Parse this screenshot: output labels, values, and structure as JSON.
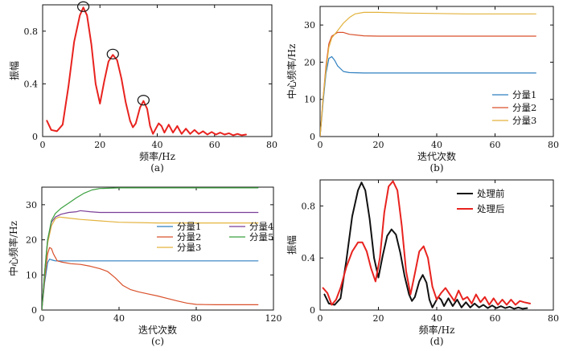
{
  "chart_data": [
    {
      "id": "a",
      "type": "line",
      "caption": "(a)",
      "xlabel": "频率/Hz",
      "ylabel": "振幅",
      "xlim": [
        0,
        80
      ],
      "ylim": [
        0,
        1.0
      ],
      "xticks": [
        0,
        20,
        40,
        60,
        80
      ],
      "yticks": [
        0,
        0.4,
        0.8
      ],
      "ytick_labels": [
        "0",
        "0.4",
        "0.8"
      ],
      "series": [
        {
          "name": "spectrum",
          "color": "#e8231f",
          "x": [
            1.5,
            3,
            5,
            7,
            9,
            11,
            13,
            14.2,
            15.5,
            17,
            18.5,
            20,
            21.5,
            23,
            24.5,
            26,
            27.5,
            29,
            30.5,
            31.5,
            32.5,
            34,
            35.2,
            36.5,
            37.5,
            38.5,
            39.5,
            40.5,
            41.5,
            42.5,
            44,
            45.5,
            47,
            48.5,
            50,
            51.5,
            53,
            54.5,
            56,
            57.5,
            59,
            60.5,
            62,
            63.5,
            65,
            66.5,
            68,
            69.5,
            71
          ],
          "y": [
            0.12,
            0.05,
            0.04,
            0.09,
            0.38,
            0.72,
            0.92,
            0.98,
            0.92,
            0.7,
            0.4,
            0.25,
            0.42,
            0.57,
            0.62,
            0.58,
            0.44,
            0.26,
            0.12,
            0.07,
            0.1,
            0.22,
            0.27,
            0.21,
            0.08,
            0.02,
            0.06,
            0.1,
            0.08,
            0.03,
            0.09,
            0.03,
            0.08,
            0.02,
            0.06,
            0.02,
            0.05,
            0.02,
            0.04,
            0.015,
            0.035,
            0.015,
            0.03,
            0.015,
            0.025,
            0.01,
            0.02,
            0.01,
            0.015
          ]
        }
      ],
      "markers": [
        {
          "x": 14.2,
          "y": 0.98
        },
        {
          "x": 24.5,
          "y": 0.62
        },
        {
          "x": 35.2,
          "y": 0.27
        }
      ]
    },
    {
      "id": "b",
      "type": "line",
      "caption": "(b)",
      "xlabel": "迭代次数",
      "ylabel": "中心频率/Hz",
      "xlim": [
        0,
        80
      ],
      "ylim": [
        0,
        35
      ],
      "xticks": [
        0,
        20,
        40,
        60,
        80
      ],
      "yticks": [
        0,
        10,
        20,
        30
      ],
      "legend_position": "bottom-right",
      "series": [
        {
          "name": "分量1",
          "color": "#2e7fc0",
          "x": [
            0,
            1,
            2,
            3,
            4,
            5,
            6,
            8,
            10,
            15,
            20,
            30,
            50,
            74
          ],
          "y": [
            0,
            9,
            17,
            21,
            21.5,
            20.5,
            19,
            17.5,
            17.2,
            17.1,
            17.1,
            17.1,
            17.1,
            17.1
          ]
        },
        {
          "name": "分量2",
          "color": "#d9502a",
          "x": [
            0,
            1,
            2,
            3,
            4,
            6,
            8,
            10,
            15,
            20,
            30,
            50,
            74
          ],
          "y": [
            0,
            10,
            19,
            25,
            27,
            28,
            28,
            27.5,
            27.1,
            27,
            27,
            27,
            27
          ]
        },
        {
          "name": "分量3",
          "color": "#e3b23c",
          "x": [
            0,
            1,
            2,
            3,
            4,
            6,
            8,
            10,
            12,
            15,
            20,
            30,
            50,
            74
          ],
          "y": [
            0,
            10,
            18,
            24,
            26.5,
            28.5,
            30.5,
            32,
            33,
            33.4,
            33.4,
            33.2,
            33,
            33
          ]
        }
      ]
    },
    {
      "id": "c",
      "type": "line",
      "caption": "(c)",
      "xlabel": "迭代次数",
      "ylabel": "中心频率/Hz",
      "xlim": [
        0,
        120
      ],
      "ylim": [
        0,
        35
      ],
      "xticks": [
        0,
        40,
        80,
        120
      ],
      "yticks": [
        0,
        10,
        20,
        30
      ],
      "legend_position": "right",
      "legend_columns": 2,
      "series": [
        {
          "name": "分量1",
          "color": "#2e7fc0",
          "x": [
            0,
            1.5,
            3,
            4,
            5,
            7,
            10,
            20,
            40,
            60,
            80,
            100,
            112
          ],
          "y": [
            0,
            8,
            13.5,
            14.5,
            14.3,
            14,
            14,
            14,
            14,
            14,
            14,
            14,
            14
          ]
        },
        {
          "name": "分量2",
          "color": "#d9502a",
          "x": [
            0,
            1.5,
            3,
            4,
            5,
            6,
            8,
            10,
            15,
            20,
            25,
            30,
            34,
            38,
            42,
            46,
            50,
            55,
            60,
            65,
            70,
            75,
            80,
            90,
            100,
            112
          ],
          "y": [
            0,
            9,
            16,
            17.8,
            17.5,
            16,
            14,
            13.7,
            13.2,
            13,
            12.5,
            11.8,
            11,
            9.2,
            7,
            5.8,
            5.2,
            4.6,
            4,
            3.3,
            2.6,
            2,
            1.6,
            1.5,
            1.5,
            1.5
          ]
        },
        {
          "name": "分量3",
          "color": "#e3b23c",
          "x": [
            0,
            1.5,
            3,
            5,
            7,
            9,
            12,
            20,
            40,
            60,
            80,
            100,
            112
          ],
          "y": [
            0,
            10,
            19,
            24,
            26,
            26.5,
            26.3,
            25.8,
            25,
            24.8,
            24.8,
            24.8,
            24.8
          ]
        },
        {
          "name": "分量4",
          "color": "#7b3f98",
          "x": [
            0,
            1.5,
            3,
            5,
            7,
            10,
            14,
            18,
            20,
            25,
            30,
            40,
            60,
            80,
            100,
            112
          ],
          "y": [
            0,
            11,
            20,
            25,
            26.5,
            27.3,
            27.8,
            28,
            28.3,
            28,
            27.8,
            27.8,
            27.8,
            27.8,
            27.8,
            27.8
          ]
        },
        {
          "name": "分量5",
          "color": "#3aa03e",
          "x": [
            0,
            1.5,
            3,
            5,
            7,
            10,
            14,
            18,
            22,
            26,
            30,
            40,
            60,
            80,
            100,
            112
          ],
          "y": [
            0,
            11,
            20,
            25.5,
            27.5,
            29,
            30.5,
            32,
            33.3,
            34.2,
            34.6,
            34.8,
            34.8,
            34.8,
            34.8,
            34.8
          ]
        }
      ]
    },
    {
      "id": "d",
      "type": "line",
      "caption": "(d)",
      "xlabel": "频率/Hz",
      "ylabel": "振幅",
      "xlim": [
        0,
        80
      ],
      "ylim": [
        0,
        1.0
      ],
      "xticks": [
        0,
        20,
        40,
        60,
        80
      ],
      "yticks": [
        0,
        0.4,
        0.8
      ],
      "ytick_labels": [
        "0",
        "0.4",
        "0.8"
      ],
      "legend_position": "top-right",
      "series": [
        {
          "name": "处理前",
          "color": "#111111",
          "x": [
            1.5,
            3,
            5,
            7,
            9,
            11,
            13,
            14.2,
            15.5,
            17,
            18.5,
            20,
            21.5,
            23,
            24.5,
            26,
            27.5,
            29,
            30.5,
            31.5,
            32.5,
            34,
            35.2,
            36.5,
            37.5,
            38.5,
            39.5,
            40.5,
            41.5,
            42.5,
            44,
            45.5,
            47,
            48.5,
            50,
            51.5,
            53,
            54.5,
            56,
            57.5,
            59,
            60.5,
            62,
            63.5,
            65,
            66.5,
            68,
            69.5,
            71
          ],
          "y": [
            0.12,
            0.05,
            0.04,
            0.09,
            0.38,
            0.72,
            0.92,
            0.98,
            0.92,
            0.7,
            0.4,
            0.25,
            0.42,
            0.57,
            0.62,
            0.58,
            0.44,
            0.26,
            0.12,
            0.07,
            0.1,
            0.22,
            0.27,
            0.21,
            0.08,
            0.02,
            0.06,
            0.1,
            0.08,
            0.03,
            0.09,
            0.03,
            0.08,
            0.02,
            0.06,
            0.02,
            0.05,
            0.02,
            0.04,
            0.015,
            0.035,
            0.015,
            0.03,
            0.015,
            0.025,
            0.01,
            0.02,
            0.01,
            0.015
          ]
        },
        {
          "name": "处理后",
          "color": "#e8231f",
          "x": [
            1,
            2.5,
            4,
            5.5,
            7,
            9,
            11,
            13,
            14.5,
            16,
            17.5,
            19,
            20.5,
            22,
            23.5,
            25,
            26.5,
            28,
            29.5,
            31,
            32.5,
            34,
            35.5,
            37,
            38.5,
            40,
            41.5,
            43,
            44.5,
            46,
            47.5,
            49,
            50.5,
            52,
            53.5,
            55,
            56.5,
            58,
            59.5,
            61,
            62.5,
            64,
            65.5,
            67,
            68.5,
            70,
            72
          ],
          "y": [
            0.17,
            0.13,
            0.04,
            0.08,
            0.17,
            0.33,
            0.45,
            0.52,
            0.52,
            0.45,
            0.32,
            0.22,
            0.4,
            0.75,
            0.95,
            0.99,
            0.92,
            0.65,
            0.3,
            0.12,
            0.28,
            0.45,
            0.49,
            0.4,
            0.18,
            0.08,
            0.13,
            0.17,
            0.12,
            0.07,
            0.15,
            0.08,
            0.1,
            0.05,
            0.12,
            0.06,
            0.1,
            0.04,
            0.09,
            0.04,
            0.08,
            0.04,
            0.08,
            0.04,
            0.07,
            0.06,
            0.05
          ]
        }
      ]
    }
  ]
}
